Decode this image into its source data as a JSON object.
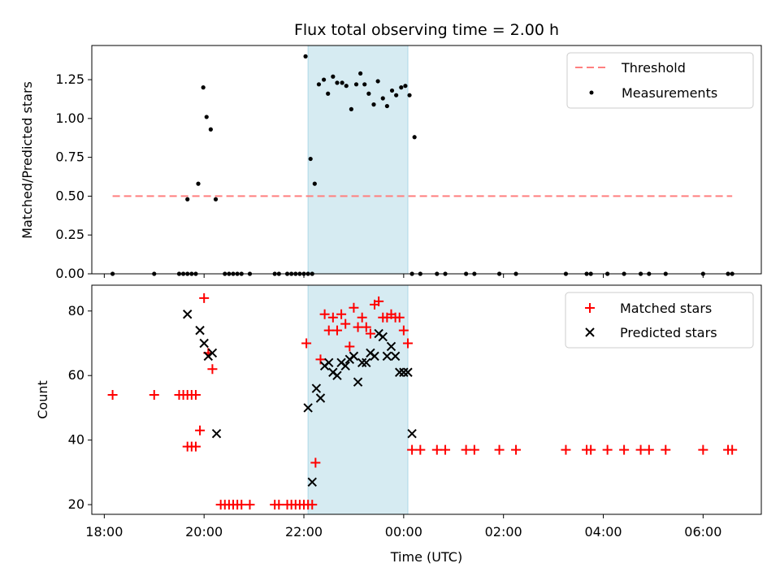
{
  "chart_data": [
    {
      "type": "scatter",
      "title": "Flux total observing time = 2.00 h",
      "xlabel": "",
      "ylabel": "Matched/Predicted stars",
      "xlim": [
        "17:45",
        "07:10"
      ],
      "ylim": [
        0,
        1.47
      ],
      "yticks": [
        "0.00",
        "0.25",
        "0.50",
        "0.75",
        "1.00",
        "1.25"
      ],
      "grid": false,
      "legend_position": "top-right",
      "observing_window": {
        "start": "22:05",
        "end": "00:05"
      },
      "threshold": {
        "name": "Threshold",
        "value": 0.5,
        "x_start": "18:10",
        "x_end": "06:35",
        "color": "#ff7f7f"
      },
      "series": [
        {
          "name": "Measurements",
          "color": "#000000",
          "points": [
            [
              "18:10",
              0
            ],
            [
              "19:00",
              0
            ],
            [
              "19:30",
              0
            ],
            [
              "19:35",
              0
            ],
            [
              "19:40",
              0
            ],
            [
              "19:45",
              0
            ],
            [
              "19:50",
              0
            ],
            [
              "20:25",
              0
            ],
            [
              "20:30",
              0
            ],
            [
              "20:35",
              0
            ],
            [
              "20:40",
              0
            ],
            [
              "20:45",
              0
            ],
            [
              "20:55",
              0
            ],
            [
              "21:25",
              0
            ],
            [
              "21:30",
              0
            ],
            [
              "21:40",
              0
            ],
            [
              "21:45",
              0
            ],
            [
              "21:50",
              0
            ],
            [
              "21:55",
              0
            ],
            [
              "22:00",
              0
            ],
            [
              "22:05",
              0
            ],
            [
              "22:10",
              0
            ],
            [
              "00:10",
              0
            ],
            [
              "00:20",
              0
            ],
            [
              "00:40",
              0
            ],
            [
              "00:50",
              0
            ],
            [
              "01:15",
              0
            ],
            [
              "01:25",
              0
            ],
            [
              "01:55",
              0
            ],
            [
              "02:15",
              0
            ],
            [
              "03:15",
              0
            ],
            [
              "03:40",
              0
            ],
            [
              "03:45",
              0
            ],
            [
              "04:05",
              0
            ],
            [
              "04:25",
              0
            ],
            [
              "04:45",
              0
            ],
            [
              "04:55",
              0
            ],
            [
              "05:15",
              0
            ],
            [
              "06:00",
              0
            ],
            [
              "06:30",
              0
            ],
            [
              "06:35",
              0
            ],
            [
              "19:40",
              0.48
            ],
            [
              "19:53",
              0.58
            ],
            [
              "19:59",
              1.2
            ],
            [
              "20:03",
              1.01
            ],
            [
              "20:08",
              0.93
            ],
            [
              "20:14",
              0.48
            ],
            [
              "22:02",
              1.4
            ],
            [
              "22:08",
              0.74
            ],
            [
              "22:13",
              0.58
            ],
            [
              "22:18",
              1.22
            ],
            [
              "22:24",
              1.25
            ],
            [
              "22:29",
              1.16
            ],
            [
              "22:35",
              1.27
            ],
            [
              "22:40",
              1.23
            ],
            [
              "22:46",
              1.23
            ],
            [
              "22:51",
              1.21
            ],
            [
              "22:57",
              1.06
            ],
            [
              "23:03",
              1.22
            ],
            [
              "23:08",
              1.29
            ],
            [
              "23:13",
              1.22
            ],
            [
              "23:18",
              1.16
            ],
            [
              "23:24",
              1.09
            ],
            [
              "23:29",
              1.24
            ],
            [
              "23:35",
              1.13
            ],
            [
              "23:40",
              1.08
            ],
            [
              "23:46",
              1.18
            ],
            [
              "23:51",
              1.15
            ],
            [
              "23:57",
              1.2
            ],
            [
              "24:02",
              1.21
            ],
            [
              "24:07",
              1.15
            ],
            [
              "24:13",
              0.88
            ]
          ]
        }
      ]
    },
    {
      "type": "scatter",
      "title": "",
      "xlabel": "Time (UTC)",
      "ylabel": "Count",
      "xlim": [
        "17:45",
        "07:10"
      ],
      "ylim": [
        17,
        88
      ],
      "yticks": [
        "20",
        "40",
        "60",
        "80"
      ],
      "xticks": [
        "18:00",
        "20:00",
        "22:00",
        "00:00",
        "02:00",
        "04:00",
        "06:00"
      ],
      "grid": false,
      "legend_position": "top-right",
      "observing_window": {
        "start": "22:05",
        "end": "00:05"
      },
      "series": [
        {
          "name": "Matched stars",
          "marker": "plus",
          "color": "#ff0000",
          "points": [
            [
              "18:10",
              54
            ],
            [
              "19:00",
              54
            ],
            [
              "19:30",
              54
            ],
            [
              "19:35",
              54
            ],
            [
              "19:40",
              54
            ],
            [
              "19:45",
              54
            ],
            [
              "19:50",
              54
            ],
            [
              "19:40",
              38
            ],
            [
              "19:45",
              38
            ],
            [
              "19:50",
              38
            ],
            [
              "19:55",
              43
            ],
            [
              "20:00",
              84
            ],
            [
              "20:05",
              67
            ],
            [
              "20:10",
              62
            ],
            [
              "20:20",
              20
            ],
            [
              "20:25",
              20
            ],
            [
              "20:30",
              20
            ],
            [
              "20:35",
              20
            ],
            [
              "20:40",
              20
            ],
            [
              "20:45",
              20
            ],
            [
              "20:55",
              20
            ],
            [
              "21:25",
              20
            ],
            [
              "21:30",
              20
            ],
            [
              "21:40",
              20
            ],
            [
              "21:45",
              20
            ],
            [
              "21:50",
              20
            ],
            [
              "21:55",
              20
            ],
            [
              "22:00",
              20
            ],
            [
              "22:05",
              20
            ],
            [
              "22:10",
              20
            ],
            [
              "22:03",
              70
            ],
            [
              "22:14",
              33
            ],
            [
              "22:20",
              65
            ],
            [
              "22:25",
              79
            ],
            [
              "22:30",
              74
            ],
            [
              "22:35",
              78
            ],
            [
              "22:40",
              74
            ],
            [
              "22:45",
              79
            ],
            [
              "22:50",
              76
            ],
            [
              "22:55",
              69
            ],
            [
              "23:00",
              81
            ],
            [
              "23:05",
              75
            ],
            [
              "23:10",
              78
            ],
            [
              "23:15",
              75
            ],
            [
              "23:20",
              73
            ],
            [
              "23:25",
              82
            ],
            [
              "23:30",
              83
            ],
            [
              "23:35",
              78
            ],
            [
              "23:40",
              78
            ],
            [
              "23:45",
              79
            ],
            [
              "23:50",
              78
            ],
            [
              "23:55",
              78
            ],
            [
              "24:00",
              74
            ],
            [
              "24:05",
              70
            ],
            [
              "00:10",
              37
            ],
            [
              "00:20",
              37
            ],
            [
              "00:40",
              37
            ],
            [
              "00:50",
              37
            ],
            [
              "01:15",
              37
            ],
            [
              "01:25",
              37
            ],
            [
              "01:55",
              37
            ],
            [
              "02:15",
              37
            ],
            [
              "03:15",
              37
            ],
            [
              "03:40",
              37
            ],
            [
              "03:45",
              37
            ],
            [
              "04:05",
              37
            ],
            [
              "04:25",
              37
            ],
            [
              "04:45",
              37
            ],
            [
              "04:55",
              37
            ],
            [
              "05:15",
              37
            ],
            [
              "06:00",
              37
            ],
            [
              "06:30",
              37
            ],
            [
              "06:35",
              37
            ]
          ]
        },
        {
          "name": "Predicted stars",
          "marker": "x",
          "color": "#000000",
          "points": [
            [
              "19:40",
              79
            ],
            [
              "19:55",
              74
            ],
            [
              "20:00",
              70
            ],
            [
              "20:05",
              66
            ],
            [
              "20:10",
              67
            ],
            [
              "20:15",
              42
            ],
            [
              "22:05",
              50
            ],
            [
              "22:10",
              27
            ],
            [
              "22:15",
              56
            ],
            [
              "22:20",
              53
            ],
            [
              "22:25",
              63
            ],
            [
              "22:30",
              64
            ],
            [
              "22:35",
              61
            ],
            [
              "22:40",
              60
            ],
            [
              "22:45",
              64
            ],
            [
              "22:50",
              63
            ],
            [
              "22:55",
              65
            ],
            [
              "23:00",
              66
            ],
            [
              "23:05",
              58
            ],
            [
              "23:10",
              64
            ],
            [
              "23:15",
              64
            ],
            [
              "23:20",
              67
            ],
            [
              "23:25",
              66
            ],
            [
              "23:30",
              73
            ],
            [
              "23:35",
              72
            ],
            [
              "23:40",
              66
            ],
            [
              "23:45",
              69
            ],
            [
              "23:50",
              66
            ],
            [
              "23:55",
              61
            ],
            [
              "24:00",
              61
            ],
            [
              "24:05",
              61
            ],
            [
              "24:10",
              42
            ]
          ]
        }
      ]
    }
  ]
}
